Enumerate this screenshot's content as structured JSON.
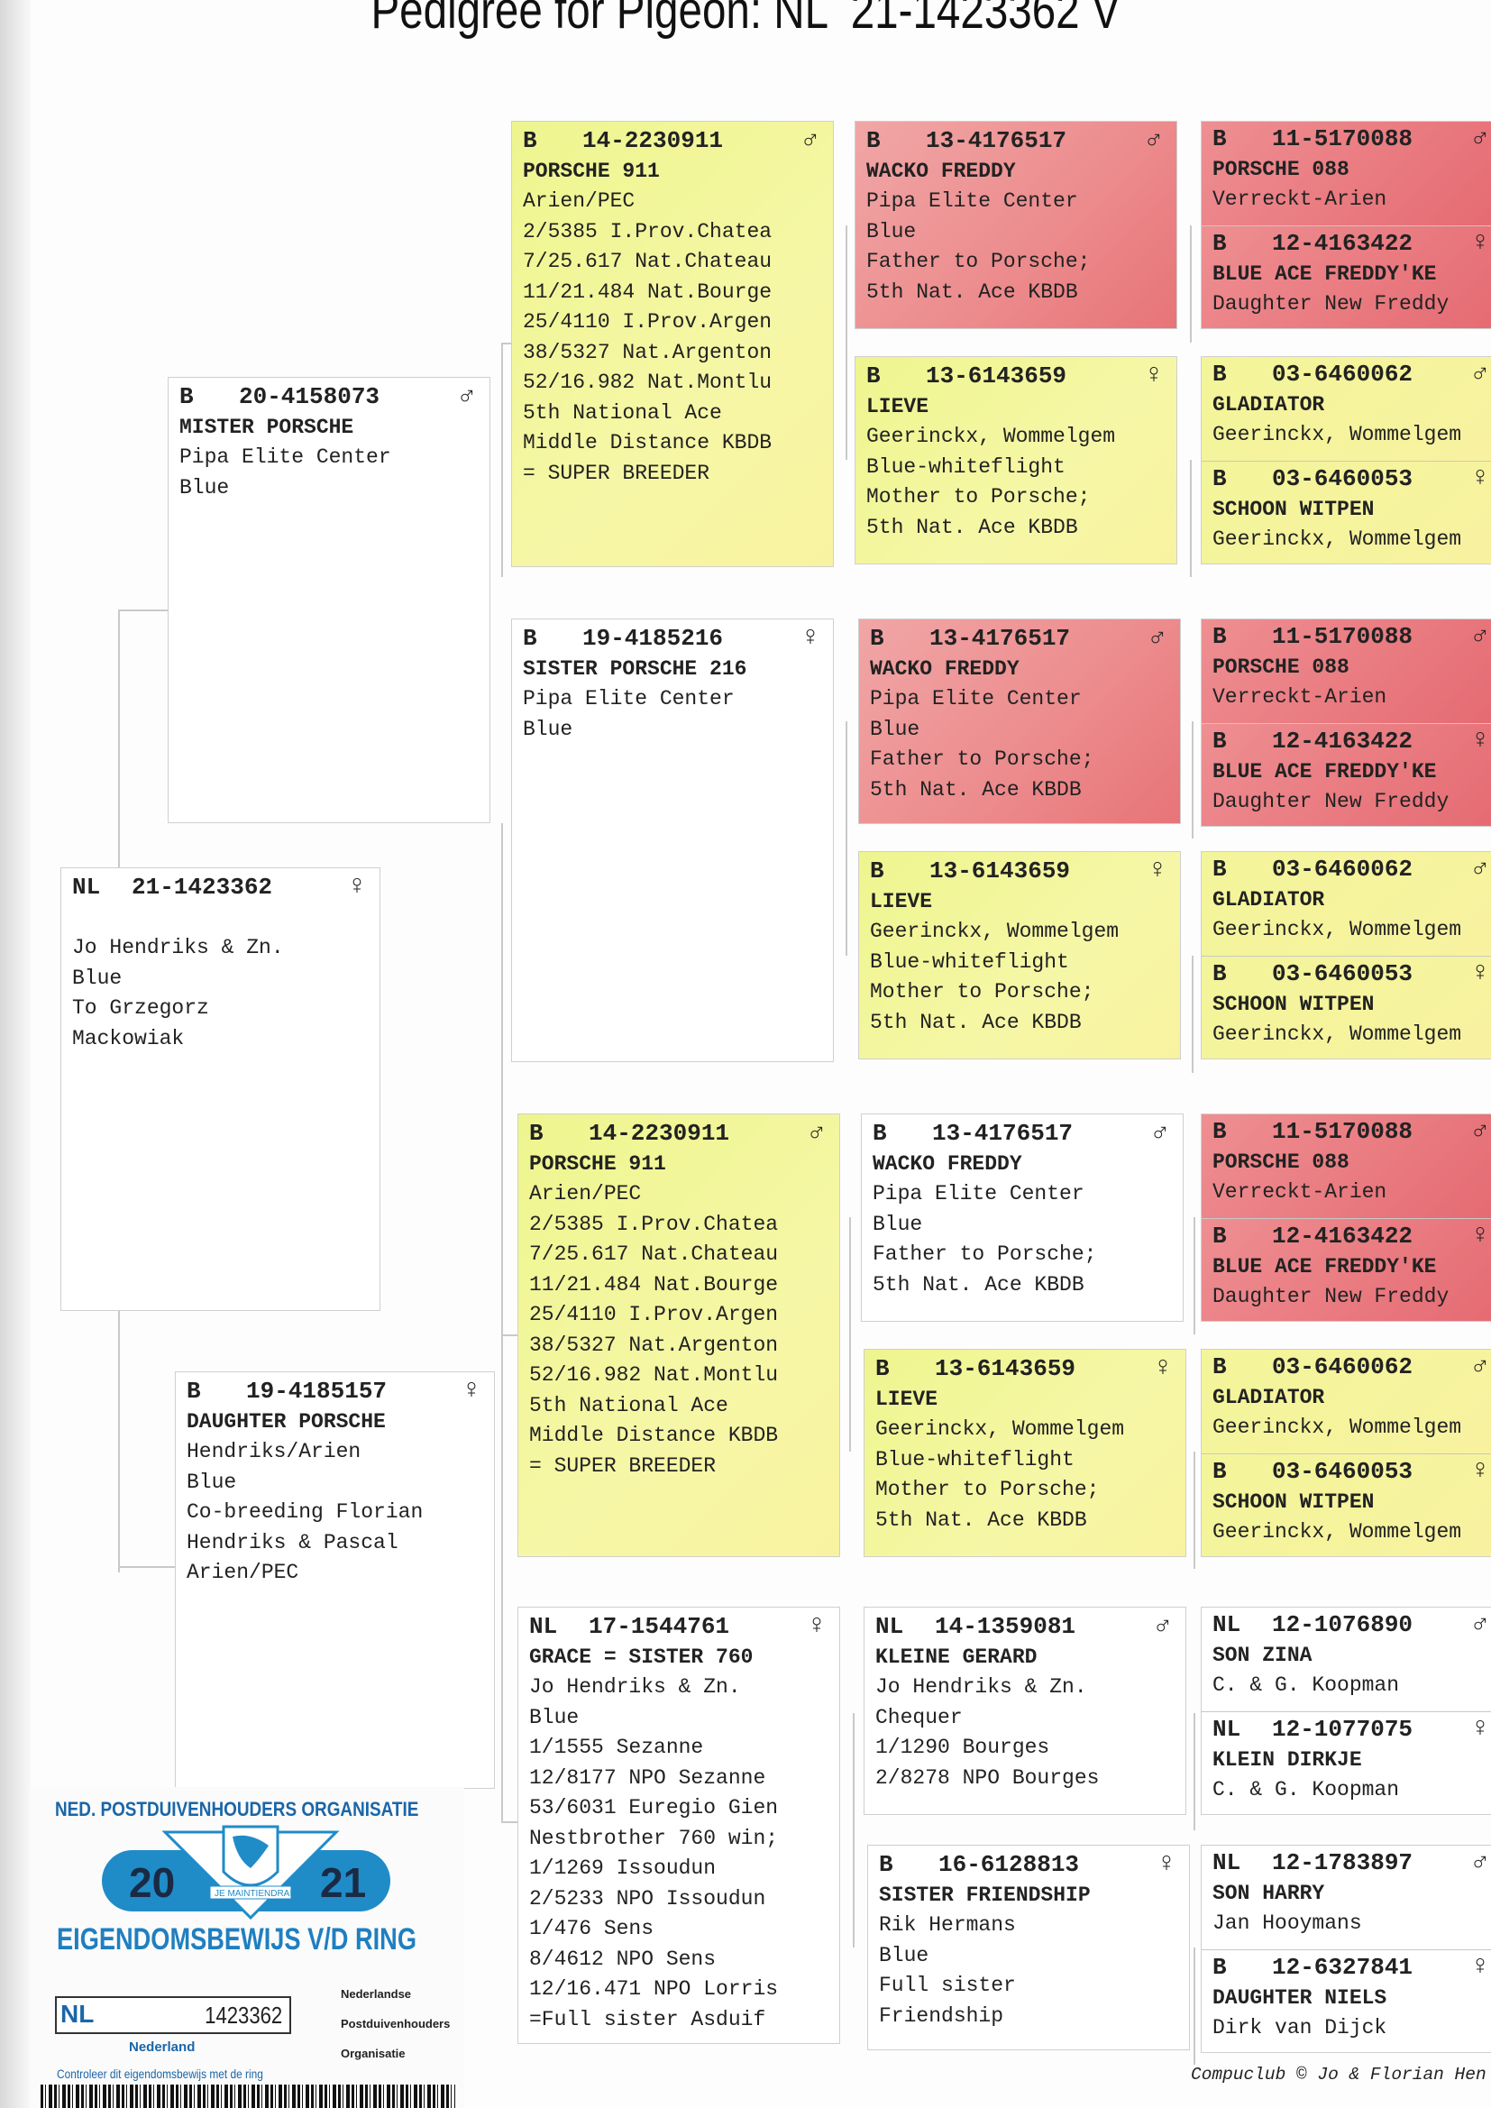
{
  "title": "Pedigree for Pigeon: NL  21-1423362 V",
  "colors": {
    "yellow": "#f3f59c",
    "pink": "#ec8a8c",
    "red": "#e8737a",
    "white": "#ffffff"
  },
  "pigeons": [
    {
      "country": "NL",
      "ring": "21-1423362",
      "sex": "♀",
      "name": "",
      "lines": [
        "Jo Hendriks & Zn.",
        "Blue",
        "To Grzegorz",
        "Mackowiak"
      ],
      "color": "white"
    },
    {
      "country": "B",
      "ring": "20-4158073",
      "sex": "♂",
      "name": "MISTER PORSCHE",
      "lines": [
        "Pipa Elite Center",
        "Blue"
      ],
      "color": "white"
    },
    {
      "country": "B",
      "ring": "19-4185157",
      "sex": "♀",
      "name": "DAUGHTER PORSCHE",
      "lines": [
        "Hendriks/Arien",
        "Blue",
        "Co-breeding Florian",
        "Hendriks & Pascal",
        "Arien/PEC"
      ],
      "color": "white"
    },
    {
      "country": "B",
      "ring": "14-2230911",
      "sex": "♂",
      "name": "PORSCHE 911",
      "lines": [
        "Arien/PEC",
        "2/5385 I.Prov.Chatea",
        "7/25.617 Nat.Chateau",
        "11/21.484 Nat.Bourge",
        "25/4110 I.Prov.Argen",
        "38/5327 Nat.Argenton",
        "52/16.982 Nat.Montlu",
        "5th National Ace",
        "Middle Distance KBDB",
        "= SUPER BREEDER"
      ],
      "color": "yellow"
    },
    {
      "country": "B",
      "ring": "19-4185216",
      "sex": "♀",
      "name": "SISTER PORSCHE 216",
      "lines": [
        "Pipa Elite Center",
        "Blue"
      ],
      "color": "white"
    },
    {
      "country": "B",
      "ring": "14-2230911",
      "sex": "♂",
      "name": "PORSCHE 911",
      "lines": [
        "Arien/PEC",
        "2/5385 I.Prov.Chatea",
        "7/25.617 Nat.Chateau",
        "11/21.484 Nat.Bourge",
        "25/4110 I.Prov.Argen",
        "38/5327 Nat.Argenton",
        "52/16.982 Nat.Montlu",
        "5th National Ace",
        "Middle Distance KBDB",
        "= SUPER BREEDER"
      ],
      "color": "yellow"
    },
    {
      "country": "NL",
      "ring": "17-1544761",
      "sex": "♀",
      "name": "GRACE = SISTER 760",
      "lines": [
        "Jo Hendriks & Zn.",
        "Blue",
        "1/1555 Sezanne",
        "12/8177 NPO Sezanne",
        "53/6031 Euregio Gien",
        "Nestbrother 760 win;",
        "1/1269 Issoudun",
        "2/5233 NPO Issoudun",
        "1/476 Sens",
        "8/4612 NPO Sens",
        "12/16.471 NPO Lorris",
        "=Full sister Asduif"
      ],
      "color": "white"
    },
    {
      "country": "B",
      "ring": "13-4176517",
      "sex": "♂",
      "name": "WACKO FREDDY",
      "lines": [
        "Pipa Elite Center",
        "Blue",
        "Father to Porsche;",
        "5th Nat. Ace KBDB"
      ],
      "color": "pink"
    },
    {
      "country": "B",
      "ring": "13-6143659",
      "sex": "♀",
      "name": "LIEVE",
      "lines": [
        "Geerinckx, Wommelgem",
        "Blue-whiteflight",
        "Mother to Porsche;",
        "5th Nat. Ace KBDB"
      ],
      "color": "yellow"
    },
    {
      "country": "B",
      "ring": "13-4176517",
      "sex": "♂",
      "name": "WACKO FREDDY",
      "lines": [
        "Pipa Elite Center",
        "Blue",
        "Father to Porsche;",
        "5th Nat. Ace KBDB"
      ],
      "color": "pink"
    },
    {
      "country": "B",
      "ring": "13-6143659",
      "sex": "♀",
      "name": "LIEVE",
      "lines": [
        "Geerinckx, Wommelgem",
        "Blue-whiteflight",
        "Mother to Porsche;",
        "5th Nat. Ace KBDB"
      ],
      "color": "yellow"
    },
    {
      "country": "B",
      "ring": "13-4176517",
      "sex": "♂",
      "name": "WACKO FREDDY",
      "lines": [
        "Pipa Elite Center",
        "Blue",
        "Father to Porsche;",
        "5th Nat. Ace KBDB"
      ],
      "color": "white"
    },
    {
      "country": "B",
      "ring": "13-6143659",
      "sex": "♀",
      "name": "LIEVE",
      "lines": [
        "Geerinckx, Wommelgem",
        "Blue-whiteflight",
        "Mother to Porsche;",
        "5th Nat. Ace KBDB"
      ],
      "color": "yellow"
    },
    {
      "country": "NL",
      "ring": "14-1359081",
      "sex": "♂",
      "name": "KLEINE GERARD",
      "lines": [
        "Jo Hendriks & Zn.",
        "Chequer",
        "1/1290 Bourges",
        "2/8278 NPO Bourges"
      ],
      "color": "white"
    },
    {
      "country": "B",
      "ring": "16-6128813",
      "sex": "♀",
      "name": "SISTER FRIENDSHIP",
      "lines": [
        "Rik Hermans",
        "Blue",
        "Full sister",
        "Friendship"
      ],
      "color": "white"
    }
  ],
  "great_grandparents": [
    {
      "country": "B",
      "ring": "11-5170088",
      "sex": "♂",
      "name": "PORSCHE 088",
      "lines": [
        "Verreckt-Arien"
      ],
      "color": "red"
    },
    {
      "country": "B",
      "ring": "12-4163422",
      "sex": "♀",
      "name": "BLUE ACE FREDDY'KE",
      "lines": [
        "Daughter New Freddy"
      ],
      "color": "red"
    },
    {
      "country": "B",
      "ring": "03-6460062",
      "sex": "♂",
      "name": "GLADIATOR",
      "lines": [
        "Geerinckx, Wommelgem"
      ],
      "color": "yellow"
    },
    {
      "country": "B",
      "ring": "03-6460053",
      "sex": "♀",
      "name": "SCHOON WITPEN",
      "lines": [
        "Geerinckx, Wommelgem"
      ],
      "color": "yellow"
    },
    {
      "country": "B",
      "ring": "11-5170088",
      "sex": "♂",
      "name": "PORSCHE 088",
      "lines": [
        "Verreckt-Arien"
      ],
      "color": "red"
    },
    {
      "country": "B",
      "ring": "12-4163422",
      "sex": "♀",
      "name": "BLUE ACE FREDDY'KE",
      "lines": [
        "Daughter New Freddy"
      ],
      "color": "red"
    },
    {
      "country": "B",
      "ring": "03-6460062",
      "sex": "♂",
      "name": "GLADIATOR",
      "lines": [
        "Geerinckx, Wommelgem"
      ],
      "color": "yellow"
    },
    {
      "country": "B",
      "ring": "03-6460053",
      "sex": "♀",
      "name": "SCHOON WITPEN",
      "lines": [
        "Geerinckx, Wommelgem"
      ],
      "color": "yellow"
    },
    {
      "country": "B",
      "ring": "11-5170088",
      "sex": "♂",
      "name": "PORSCHE 088",
      "lines": [
        "Verreckt-Arien"
      ],
      "color": "red"
    },
    {
      "country": "B",
      "ring": "12-4163422",
      "sex": "♀",
      "name": "BLUE ACE FREDDY'KE",
      "lines": [
        "Daughter New Freddy"
      ],
      "color": "red"
    },
    {
      "country": "B",
      "ring": "03-6460062",
      "sex": "♂",
      "name": "GLADIATOR",
      "lines": [
        "Geerinckx, Wommelgem"
      ],
      "color": "yellow"
    },
    {
      "country": "B",
      "ring": "03-6460053",
      "sex": "♀",
      "name": "SCHOON WITPEN",
      "lines": [
        "Geerinckx, Wommelgem"
      ],
      "color": "yellow"
    },
    {
      "country": "NL",
      "ring": "12-1076890",
      "sex": "♂",
      "name": "SON ZINA",
      "lines": [
        "C. & G. Koopman"
      ],
      "color": "white"
    },
    {
      "country": "NL",
      "ring": "12-1077075",
      "sex": "♀",
      "name": "KLEIN DIRKJE",
      "lines": [
        "C. & G. Koopman"
      ],
      "color": "white"
    },
    {
      "country": "NL",
      "ring": "12-1783897",
      "sex": "♂",
      "name": "SON HARRY",
      "lines": [
        "Jan Hooymans"
      ],
      "color": "white"
    },
    {
      "country": "B",
      "ring": "12-6327841",
      "sex": "♀",
      "name": "DAUGHTER NIELS",
      "lines": [
        "Dirk van Dijck"
      ],
      "color": "white"
    }
  ],
  "ring_card": {
    "organisation": "NED. POSTDUIVENHOUDERS ORGANISATIE",
    "year_left": "20",
    "year_right": "21",
    "motto": "JE MAINTIENDRAI",
    "heading": "EIGENDOMSBEWIJS V/D RING",
    "country": "NL",
    "number": "1423362",
    "land": "Nederland",
    "npo_words": [
      "Nederlandse",
      "Postduivenhouders",
      "Organisatie"
    ],
    "check_text": "Controleer dit eigendomsbewijs met de ring"
  },
  "footer": "Compuclub © Jo & Florian Hen"
}
